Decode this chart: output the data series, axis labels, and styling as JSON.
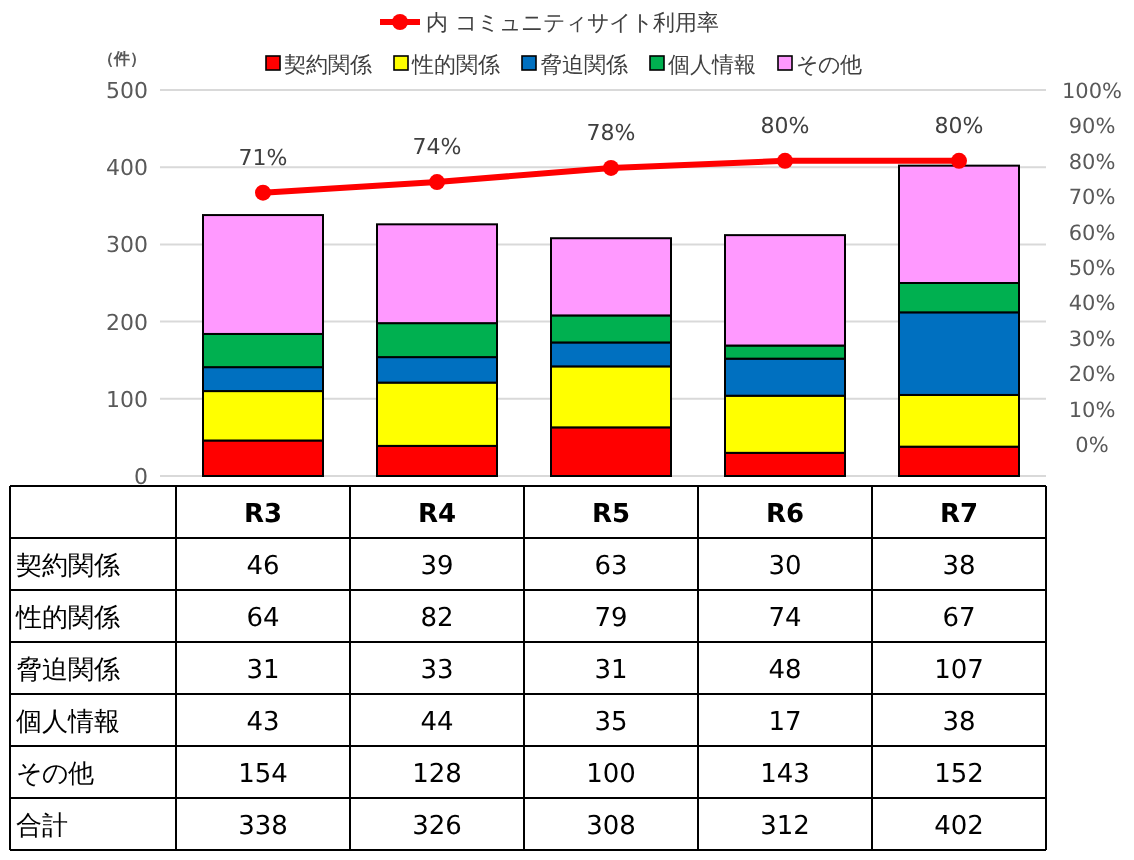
{
  "chart_data": {
    "type": "bar",
    "stacked": true,
    "ylabel": "（件）",
    "categories": [
      "R3",
      "R4",
      "R5",
      "R6",
      "R7"
    ],
    "series": [
      {
        "name": "契約関係",
        "color": "#ff0000",
        "values": [
          46,
          39,
          63,
          30,
          38
        ]
      },
      {
        "name": "性的関係",
        "color": "#ffff00",
        "values": [
          64,
          82,
          79,
          74,
          67
        ]
      },
      {
        "name": "脅迫関係",
        "color": "#0070c0",
        "values": [
          31,
          33,
          31,
          48,
          107
        ]
      },
      {
        "name": "個人情報",
        "color": "#00b050",
        "values": [
          43,
          44,
          35,
          17,
          38
        ]
      },
      {
        "name": "その他",
        "color": "#ff99ff",
        "values": [
          154,
          128,
          100,
          143,
          152
        ]
      },
      {
        "name": "内 コミュニティサイト利用率",
        "type": "line",
        "axis": "y2",
        "color": "#ff0000",
        "marker": "circle",
        "values": [
          71,
          74,
          78,
          80,
          80
        ],
        "value_labels": [
          "71%",
          "74%",
          "78%",
          "80%",
          "80%"
        ]
      }
    ],
    "data_labels": true,
    "annotations": [
      "合計",
      "338",
      "326",
      "308",
      "312",
      "402"
    ],
    "ylim": [
      0,
      500
    ],
    "yticks": [
      0,
      100,
      200,
      300,
      400,
      500
    ],
    "y2lim": [
      -9,
      100
    ],
    "y2ticks": [
      {
        "value": 0,
        "label": "0%"
      },
      {
        "value": 10,
        "label": "10%"
      },
      {
        "value": 20,
        "label": "20%"
      },
      {
        "value": 30,
        "label": "30%"
      },
      {
        "value": 40,
        "label": "40%"
      },
      {
        "value": 50,
        "label": "50%"
      },
      {
        "value": 60,
        "label": "60%"
      },
      {
        "value": 70,
        "label": "70%"
      },
      {
        "value": 80,
        "label": "80%"
      },
      {
        "value": 90,
        "label": "90%"
      },
      {
        "value": 100,
        "label": "100%"
      }
    ],
    "grid": "y",
    "legend": "top"
  }
}
